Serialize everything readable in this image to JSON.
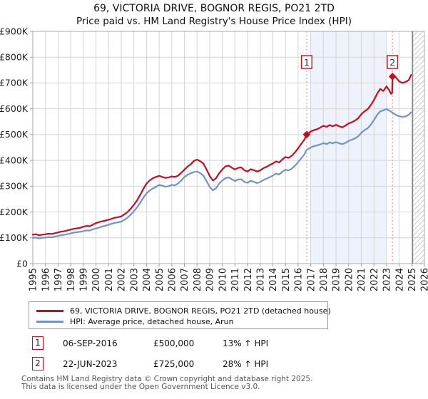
{
  "header": {
    "title": "69, VICTORIA DRIVE, BOGNOR REGIS, PO21 2TD",
    "subtitle": "Price paid vs. HM Land Registry's House Price Index (HPI)"
  },
  "colors": {
    "price_line": "#c40d22",
    "hpi_line": "#7094c6",
    "sale_dotted_line": "#ef8282",
    "shaded_period": "#eef2fb",
    "gridline": "#d4d4d4",
    "plot_border": "#aaaaaa",
    "hatch_line": "#c9c9c9",
    "hatch_boundary": "#808080",
    "marker_box_border": "#c40d22"
  },
  "chart_data": {
    "type": "line",
    "title": "69, VICTORIA DRIVE, BOGNOR REGIS, PO21 2TD",
    "subtitle": "Price paid vs. HM Land Registry's House Price Index (HPI)",
    "x_axis": {
      "min": 1995,
      "max": 2026,
      "tick_labels": [
        "1995",
        "1996",
        "1997",
        "1998",
        "1999",
        "2000",
        "2001",
        "2002",
        "2003",
        "2004",
        "2005",
        "2006",
        "2007",
        "2008",
        "2009",
        "2010",
        "2011",
        "2012",
        "2013",
        "2014",
        "2015",
        "2016",
        "2017",
        "2018",
        "2019",
        "2020",
        "2021",
        "2022",
        "2023",
        "2024",
        "2025",
        "2026"
      ]
    },
    "y_axis": {
      "min": 0,
      "max": 900000,
      "step": 100000,
      "unit": "GBP",
      "tick_labels": [
        "£0",
        "£100K",
        "£200K",
        "£300K",
        "£400K",
        "£500K",
        "£600K",
        "£700K",
        "£800K",
        "£900K"
      ]
    },
    "grid": true,
    "legend_position": "bottom",
    "shaded_period": {
      "from": 2017,
      "to": 2023
    },
    "future_hatched_period": {
      "from": 2025,
      "to": 2026
    },
    "sales": [
      {
        "label": "1",
        "date": "06-SEP-2016",
        "year": 2016.68,
        "price": 500000,
        "hpi_diff": "13% ↑ HPI"
      },
      {
        "label": "2",
        "date": "22-JUN-2023",
        "year": 2023.47,
        "price": 725000,
        "hpi_diff": "28% ↑ HPI"
      }
    ],
    "series": [
      {
        "name": "69, VICTORIA DRIVE, BOGNOR REGIS, PO21 2TD (detached house)",
        "color": "#c40d22",
        "points": [
          [
            1995,
            112000
          ],
          [
            1995.25,
            114000
          ],
          [
            1995.5,
            110000
          ],
          [
            1995.75,
            112000
          ],
          [
            1996,
            114000
          ],
          [
            1996.25,
            116000
          ],
          [
            1996.5,
            115000
          ],
          [
            1996.75,
            118000
          ],
          [
            1997,
            121000
          ],
          [
            1997.25,
            124000
          ],
          [
            1997.5,
            126000
          ],
          [
            1997.75,
            129000
          ],
          [
            1998,
            132000
          ],
          [
            1998.25,
            135000
          ],
          [
            1998.5,
            137000
          ],
          [
            1998.75,
            139000
          ],
          [
            1999,
            143000
          ],
          [
            1999.25,
            146000
          ],
          [
            1999.5,
            145000
          ],
          [
            1999.75,
            151000
          ],
          [
            2000,
            157000
          ],
          [
            2000.25,
            161000
          ],
          [
            2000.5,
            164000
          ],
          [
            2000.75,
            167000
          ],
          [
            2001,
            170000
          ],
          [
            2001.25,
            174000
          ],
          [
            2001.5,
            178000
          ],
          [
            2001.75,
            180000
          ],
          [
            2002,
            183000
          ],
          [
            2002.25,
            191000
          ],
          [
            2002.5,
            200000
          ],
          [
            2002.75,
            213000
          ],
          [
            2003,
            228000
          ],
          [
            2003.25,
            245000
          ],
          [
            2003.5,
            266000
          ],
          [
            2003.75,
            290000
          ],
          [
            2004,
            310000
          ],
          [
            2004.25,
            322000
          ],
          [
            2004.5,
            331000
          ],
          [
            2004.75,
            336000
          ],
          [
            2005,
            340000
          ],
          [
            2005.25,
            336000
          ],
          [
            2005.5,
            332000
          ],
          [
            2005.75,
            334000
          ],
          [
            2006,
            338000
          ],
          [
            2006.25,
            336000
          ],
          [
            2006.5,
            341000
          ],
          [
            2006.75,
            352000
          ],
          [
            2007,
            364000
          ],
          [
            2007.25,
            376000
          ],
          [
            2007.5,
            385000
          ],
          [
            2007.75,
            398000
          ],
          [
            2008,
            403000
          ],
          [
            2008.25,
            397000
          ],
          [
            2008.5,
            388000
          ],
          [
            2008.75,
            365000
          ],
          [
            2009,
            340000
          ],
          [
            2009.25,
            322000
          ],
          [
            2009.5,
            331000
          ],
          [
            2009.75,
            350000
          ],
          [
            2010,
            365000
          ],
          [
            2010.25,
            377000
          ],
          [
            2010.5,
            380000
          ],
          [
            2010.75,
            372000
          ],
          [
            2011,
            365000
          ],
          [
            2011.25,
            371000
          ],
          [
            2011.5,
            373000
          ],
          [
            2011.75,
            362000
          ],
          [
            2012,
            357000
          ],
          [
            2012.25,
            366000
          ],
          [
            2012.5,
            362000
          ],
          [
            2012.75,
            357000
          ],
          [
            2013,
            361000
          ],
          [
            2013.25,
            370000
          ],
          [
            2013.5,
            375000
          ],
          [
            2013.75,
            382000
          ],
          [
            2014,
            388000
          ],
          [
            2014.25,
            396000
          ],
          [
            2014.5,
            392000
          ],
          [
            2014.75,
            404000
          ],
          [
            2015,
            413000
          ],
          [
            2015.25,
            410000
          ],
          [
            2015.5,
            418000
          ],
          [
            2015.75,
            431000
          ],
          [
            2016,
            447000
          ],
          [
            2016.25,
            464000
          ],
          [
            2016.5,
            481000
          ],
          [
            2016.68,
            500000
          ],
          [
            2017,
            512000
          ],
          [
            2017.25,
            517000
          ],
          [
            2017.5,
            521000
          ],
          [
            2017.75,
            527000
          ],
          [
            2018,
            534000
          ],
          [
            2018.25,
            530000
          ],
          [
            2018.5,
            537000
          ],
          [
            2018.75,
            532000
          ],
          [
            2019,
            538000
          ],
          [
            2019.25,
            532000
          ],
          [
            2019.5,
            528000
          ],
          [
            2019.75,
            535000
          ],
          [
            2020,
            543000
          ],
          [
            2020.25,
            548000
          ],
          [
            2020.5,
            554000
          ],
          [
            2020.75,
            563000
          ],
          [
            2021,
            579000
          ],
          [
            2021.25,
            590000
          ],
          [
            2021.5,
            598000
          ],
          [
            2021.75,
            614000
          ],
          [
            2022,
            634000
          ],
          [
            2022.25,
            658000
          ],
          [
            2022.5,
            677000
          ],
          [
            2022.75,
            669000
          ],
          [
            2023,
            687000
          ],
          [
            2023.2,
            673000
          ],
          [
            2023.35,
            658000
          ],
          [
            2023.44,
            661000
          ],
          [
            2023.47,
            725000
          ],
          [
            2023.6,
            729000
          ],
          [
            2023.75,
            721000
          ],
          [
            2024,
            706000
          ],
          [
            2024.25,
            700000
          ],
          [
            2024.5,
            704000
          ],
          [
            2024.75,
            711000
          ],
          [
            2024.95,
            731000
          ]
        ]
      },
      {
        "name": "HPI: Average price, detached house, Arun",
        "color": "#7094c6",
        "points": [
          [
            1995,
            100000
          ],
          [
            1995.25,
            101000
          ],
          [
            1995.5,
            98000
          ],
          [
            1995.75,
            100000
          ],
          [
            1996,
            101000
          ],
          [
            1996.25,
            103000
          ],
          [
            1996.5,
            102000
          ],
          [
            1996.75,
            105000
          ],
          [
            1997,
            107000
          ],
          [
            1997.25,
            110000
          ],
          [
            1997.5,
            112000
          ],
          [
            1997.75,
            114000
          ],
          [
            1998,
            117000
          ],
          [
            1998.25,
            120000
          ],
          [
            1998.5,
            122000
          ],
          [
            1998.75,
            123000
          ],
          [
            1999,
            126000
          ],
          [
            1999.25,
            129000
          ],
          [
            1999.5,
            128000
          ],
          [
            1999.75,
            133000
          ],
          [
            2000,
            136000
          ],
          [
            2000.25,
            140000
          ],
          [
            2000.5,
            144000
          ],
          [
            2000.75,
            147000
          ],
          [
            2001,
            151000
          ],
          [
            2001.25,
            155000
          ],
          [
            2001.5,
            158000
          ],
          [
            2001.75,
            160000
          ],
          [
            2002,
            163000
          ],
          [
            2002.25,
            170000
          ],
          [
            2002.5,
            178000
          ],
          [
            2002.75,
            190000
          ],
          [
            2003,
            203000
          ],
          [
            2003.25,
            218000
          ],
          [
            2003.5,
            236000
          ],
          [
            2003.75,
            256000
          ],
          [
            2004,
            272000
          ],
          [
            2004.25,
            283000
          ],
          [
            2004.5,
            291000
          ],
          [
            2004.75,
            297000
          ],
          [
            2005,
            305000
          ],
          [
            2005.25,
            302000
          ],
          [
            2005.5,
            298000
          ],
          [
            2005.75,
            300000
          ],
          [
            2006,
            305000
          ],
          [
            2006.25,
            303000
          ],
          [
            2006.5,
            311000
          ],
          [
            2006.75,
            322000
          ],
          [
            2007,
            336000
          ],
          [
            2007.25,
            344000
          ],
          [
            2007.5,
            350000
          ],
          [
            2007.75,
            355000
          ],
          [
            2008,
            357000
          ],
          [
            2008.25,
            351000
          ],
          [
            2008.5,
            341000
          ],
          [
            2008.75,
            320000
          ],
          [
            2009,
            298000
          ],
          [
            2009.25,
            284000
          ],
          [
            2009.5,
            292000
          ],
          [
            2009.75,
            310000
          ],
          [
            2010,
            322000
          ],
          [
            2010.25,
            331000
          ],
          [
            2010.5,
            334000
          ],
          [
            2010.75,
            327000
          ],
          [
            2011,
            320000
          ],
          [
            2011.25,
            326000
          ],
          [
            2011.5,
            327000
          ],
          [
            2011.75,
            317000
          ],
          [
            2012,
            313000
          ],
          [
            2012.25,
            321000
          ],
          [
            2012.5,
            317000
          ],
          [
            2012.75,
            312000
          ],
          [
            2013,
            316000
          ],
          [
            2013.25,
            324000
          ],
          [
            2013.5,
            329000
          ],
          [
            2013.75,
            335000
          ],
          [
            2014,
            341000
          ],
          [
            2014.25,
            349000
          ],
          [
            2014.5,
            345000
          ],
          [
            2014.75,
            356000
          ],
          [
            2015,
            364000
          ],
          [
            2015.25,
            361000
          ],
          [
            2015.5,
            368000
          ],
          [
            2015.75,
            379000
          ],
          [
            2016,
            393000
          ],
          [
            2016.25,
            408000
          ],
          [
            2016.5,
            424000
          ],
          [
            2016.68,
            441000
          ],
          [
            2017,
            450000
          ],
          [
            2017.25,
            455000
          ],
          [
            2017.5,
            458000
          ],
          [
            2017.75,
            462000
          ],
          [
            2018,
            467000
          ],
          [
            2018.25,
            463000
          ],
          [
            2018.5,
            470000
          ],
          [
            2018.75,
            466000
          ],
          [
            2019,
            471000
          ],
          [
            2019.25,
            466000
          ],
          [
            2019.5,
            463000
          ],
          [
            2019.75,
            468000
          ],
          [
            2020,
            475000
          ],
          [
            2020.25,
            480000
          ],
          [
            2020.5,
            485000
          ],
          [
            2020.75,
            493000
          ],
          [
            2021,
            507000
          ],
          [
            2021.25,
            517000
          ],
          [
            2021.5,
            524000
          ],
          [
            2021.75,
            538000
          ],
          [
            2022,
            556000
          ],
          [
            2022.25,
            576000
          ],
          [
            2022.5,
            590000
          ],
          [
            2022.75,
            594000
          ],
          [
            2023,
            599000
          ],
          [
            2023.25,
            592000
          ],
          [
            2023.5,
            584000
          ],
          [
            2023.75,
            576000
          ],
          [
            2024,
            571000
          ],
          [
            2024.25,
            569000
          ],
          [
            2024.5,
            570000
          ],
          [
            2024.75,
            577000
          ],
          [
            2024.95,
            586000
          ]
        ]
      }
    ]
  },
  "legend": {
    "items": [
      {
        "label": "69, VICTORIA DRIVE, BOGNOR REGIS, PO21 2TD (detached house)",
        "color": "#c40d22"
      },
      {
        "label": "HPI: Average price, detached house, Arun",
        "color": "#7094c6"
      }
    ]
  },
  "transactions": [
    {
      "marker": "1",
      "date": "06-SEP-2016",
      "price": "£500,000",
      "hpi": "13% ↑ HPI"
    },
    {
      "marker": "2",
      "date": "22-JUN-2023",
      "price": "£725,000",
      "hpi": "28% ↑ HPI"
    }
  ],
  "footer": {
    "line1": "Contains HM Land Registry data © Crown copyright and database right 2025.",
    "line2": "This data is licensed under the Open Government Licence v3.0."
  }
}
